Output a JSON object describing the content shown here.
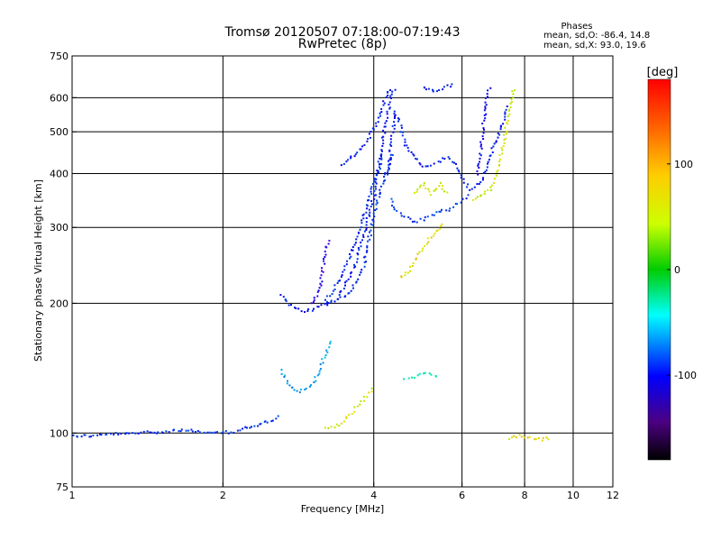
{
  "chart_data": {
    "type": "scatter",
    "title": "Tromsø 20120507 07:18:00-07:19:43",
    "subtitle": "RwPretec (8p)",
    "xlabel": "Frequency [MHz]",
    "ylabel": "Stationary phase Virtual Height [km]",
    "x_scale": "log",
    "y_scale": "log",
    "xlim": [
      1,
      12
    ],
    "ylim": [
      75,
      750
    ],
    "x_ticks": [
      1,
      2,
      4,
      6,
      8,
      10,
      12
    ],
    "x_tick_labels": [
      "1",
      "2",
      "4",
      "6",
      "8",
      "10",
      "12"
    ],
    "x_gridlines": [
      2,
      4,
      6,
      8,
      10
    ],
    "y_ticks": [
      75,
      100,
      200,
      300,
      400,
      500,
      600,
      750
    ],
    "y_tick_labels": [
      "75",
      "100",
      "200",
      "300",
      "400",
      "500",
      "600",
      "750"
    ],
    "y_gridlines": [
      100,
      200,
      300,
      400,
      500,
      600
    ],
    "grid": true,
    "phases_box": {
      "title": "Phases",
      "line1": "mean, sd,O: -86.4, 14.8",
      "line2": "mean, sd,X:  93.0, 19.6"
    },
    "colorbar": {
      "label": "[deg]",
      "range": [
        -180,
        180
      ],
      "ticks": [
        100,
        0,
        -100
      ],
      "tick_labels": [
        "100",
        "0",
        "-100"
      ],
      "colormap": "rainbow"
    },
    "series": [
      {
        "trace": [
          [
            1.0,
            99
          ],
          [
            1.1,
            99
          ],
          [
            1.2,
            100
          ],
          [
            1.3,
            100
          ],
          [
            1.4,
            101
          ],
          [
            1.5,
            101
          ],
          [
            1.6,
            102
          ],
          [
            1.7,
            102
          ],
          [
            1.8,
            101
          ],
          [
            1.9,
            100
          ],
          [
            2.0,
            101
          ],
          [
            2.1,
            101
          ],
          [
            2.2,
            103
          ],
          [
            2.3,
            104
          ],
          [
            2.4,
            106
          ],
          [
            2.5,
            108
          ],
          [
            2.6,
            110
          ]
        ],
        "phase": -95
      },
      {
        "trace": [
          [
            2.6,
            140
          ],
          [
            2.7,
            130
          ],
          [
            2.8,
            125
          ],
          [
            2.9,
            127
          ],
          [
            3.0,
            130
          ],
          [
            3.1,
            140
          ],
          [
            3.2,
            155
          ],
          [
            3.3,
            165
          ]
        ],
        "phase": -60
      },
      {
        "trace": [
          [
            2.6,
            210
          ],
          [
            2.7,
            200
          ],
          [
            2.8,
            195
          ],
          [
            2.9,
            193
          ],
          [
            3.0,
            194
          ],
          [
            3.1,
            197
          ],
          [
            3.2,
            200
          ],
          [
            3.3,
            205
          ]
        ],
        "phase": -100
      },
      {
        "trace": [
          [
            3.0,
            200
          ],
          [
            3.1,
            215
          ],
          [
            3.15,
            240
          ],
          [
            3.2,
            270
          ],
          [
            3.25,
            285
          ]
        ],
        "phase": -120
      },
      {
        "trace": [
          [
            3.2,
            200
          ],
          [
            3.4,
            205
          ],
          [
            3.6,
            215
          ],
          [
            3.8,
            245
          ],
          [
            4.0,
            330
          ],
          [
            4.2,
            400
          ],
          [
            4.35,
            450
          ]
        ],
        "phase": -95
      },
      {
        "trace": [
          [
            3.2,
            205
          ],
          [
            3.4,
            225
          ],
          [
            3.6,
            265
          ],
          [
            3.8,
            315
          ],
          [
            3.95,
            370
          ],
          [
            4.1,
            420
          ],
          [
            4.15,
            450
          ]
        ],
        "phase": -95
      },
      {
        "trace": [
          [
            3.4,
            210
          ],
          [
            3.6,
            235
          ],
          [
            3.8,
            290
          ],
          [
            4.0,
            360
          ],
          [
            4.1,
            440
          ],
          [
            4.2,
            520
          ],
          [
            4.3,
            600
          ],
          [
            4.4,
            640
          ]
        ],
        "phase": -100
      },
      {
        "trace": [
          [
            3.45,
            420
          ],
          [
            3.6,
            440
          ],
          [
            3.8,
            465
          ],
          [
            3.95,
            500
          ],
          [
            4.1,
            545
          ],
          [
            4.2,
            600
          ],
          [
            4.3,
            640
          ]
        ],
        "phase": -100
      },
      {
        "trace": [
          [
            4.25,
            400
          ],
          [
            4.3,
            450
          ],
          [
            4.35,
            500
          ],
          [
            4.4,
            560
          ],
          [
            4.5,
            520
          ],
          [
            4.6,
            470
          ],
          [
            4.8,
            440
          ],
          [
            5.0,
            420
          ],
          [
            5.2,
            420
          ],
          [
            5.4,
            430
          ],
          [
            5.6,
            440
          ],
          [
            5.8,
            420
          ],
          [
            6.0,
            390
          ],
          [
            6.2,
            370
          ],
          [
            6.5,
            380
          ],
          [
            6.8,
            440
          ],
          [
            7.1,
            500
          ],
          [
            7.4,
            580
          ]
        ],
        "phase": -100
      },
      {
        "trace": [
          [
            4.3,
            350
          ],
          [
            4.4,
            330
          ],
          [
            4.6,
            320
          ],
          [
            4.8,
            310
          ],
          [
            5.0,
            315
          ],
          [
            5.2,
            320
          ],
          [
            5.4,
            330
          ],
          [
            5.6,
            330
          ],
          [
            5.8,
            340
          ],
          [
            6.0,
            350
          ],
          [
            6.2,
            360
          ]
        ],
        "phase": -90
      },
      {
        "trace": [
          [
            5.0,
            640
          ],
          [
            5.2,
            625
          ],
          [
            5.4,
            630
          ],
          [
            5.6,
            640
          ],
          [
            5.8,
            645
          ]
        ],
        "phase": -100
      },
      {
        "trace": [
          [
            6.4,
            400
          ],
          [
            6.5,
            450
          ],
          [
            6.6,
            530
          ],
          [
            6.7,
            600
          ],
          [
            6.8,
            640
          ]
        ],
        "phase": -110
      },
      {
        "trace": [
          [
            6.3,
            350
          ],
          [
            6.5,
            355
          ],
          [
            6.8,
            370
          ],
          [
            7.0,
            400
          ],
          [
            7.2,
            460
          ],
          [
            7.4,
            550
          ],
          [
            7.6,
            640
          ]
        ],
        "phase": 100
      },
      {
        "trace": [
          [
            4.5,
            230
          ],
          [
            4.7,
            240
          ],
          [
            4.9,
            260
          ],
          [
            5.1,
            280
          ],
          [
            5.3,
            295
          ],
          [
            5.5,
            310
          ]
        ],
        "phase": 110
      },
      {
        "trace": [
          [
            4.8,
            360
          ],
          [
            5.0,
            380
          ],
          [
            5.2,
            360
          ],
          [
            5.4,
            380
          ],
          [
            5.6,
            360
          ]
        ],
        "phase": 100
      },
      {
        "trace": [
          [
            4.6,
            135
          ],
          [
            4.8,
            136
          ],
          [
            5.0,
            138
          ],
          [
            5.2,
            137
          ],
          [
            5.4,
            135
          ]
        ],
        "phase": -20
      },
      {
        "trace": [
          [
            3.2,
            103
          ],
          [
            3.4,
            105
          ],
          [
            3.6,
            112
          ],
          [
            3.8,
            120
          ],
          [
            4.0,
            128
          ]
        ],
        "phase": 100
      },
      {
        "trace": [
          [
            7.4,
            98
          ],
          [
            7.8,
            99
          ],
          [
            8.2,
            98
          ],
          [
            8.6,
            97
          ],
          [
            9.0,
            98
          ]
        ],
        "phase": 110
      }
    ]
  }
}
